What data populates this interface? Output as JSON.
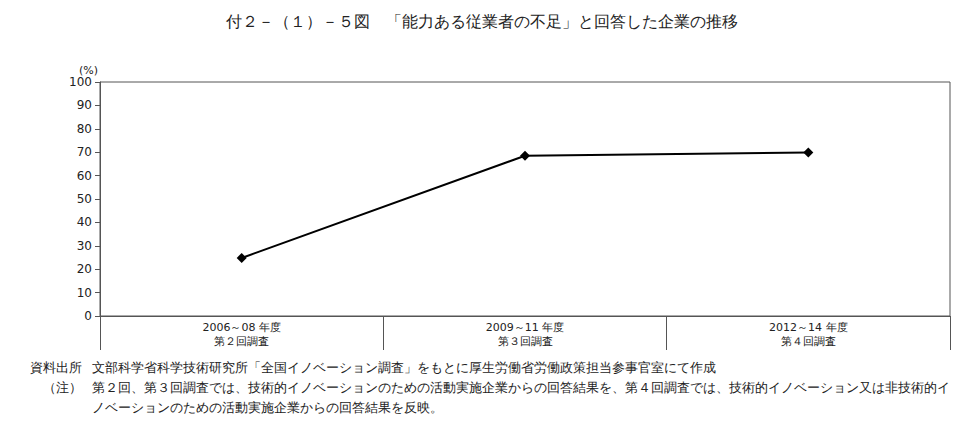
{
  "chart_data": {
    "type": "line",
    "title": "付２－（１）－５図　「能力ある従業者の不足」と回答した企業の推移",
    "y_label": "(%)",
    "categories": [
      "2006～08 年度\n第２回調査",
      "2009～11 年度\n第３回調査",
      "2012～14 年度\n第４回調査"
    ],
    "values": [
      24.8,
      68.5,
      69.9
    ],
    "color": "#000000",
    "marker": "diamond",
    "line_style": "solid",
    "ylim": [
      0,
      100
    ],
    "yticks": [
      0,
      10,
      20,
      30,
      40,
      50,
      60,
      70,
      80,
      90,
      100
    ],
    "grid": false,
    "source_label": "資料出所",
    "source": "文部科学省科学技術研究所「全国イノベーション調査」をもとに厚生労働省労働政策担当参事官室にて作成",
    "note_label": "（注）",
    "note": "第２回、第３回調査では、技術的イノベーションのための活動実施企業からの回答結果を、第４回調査では、技術的イノベーション又は非技術的イノベーションのための活動実施企業からの回答結果を反映。"
  }
}
